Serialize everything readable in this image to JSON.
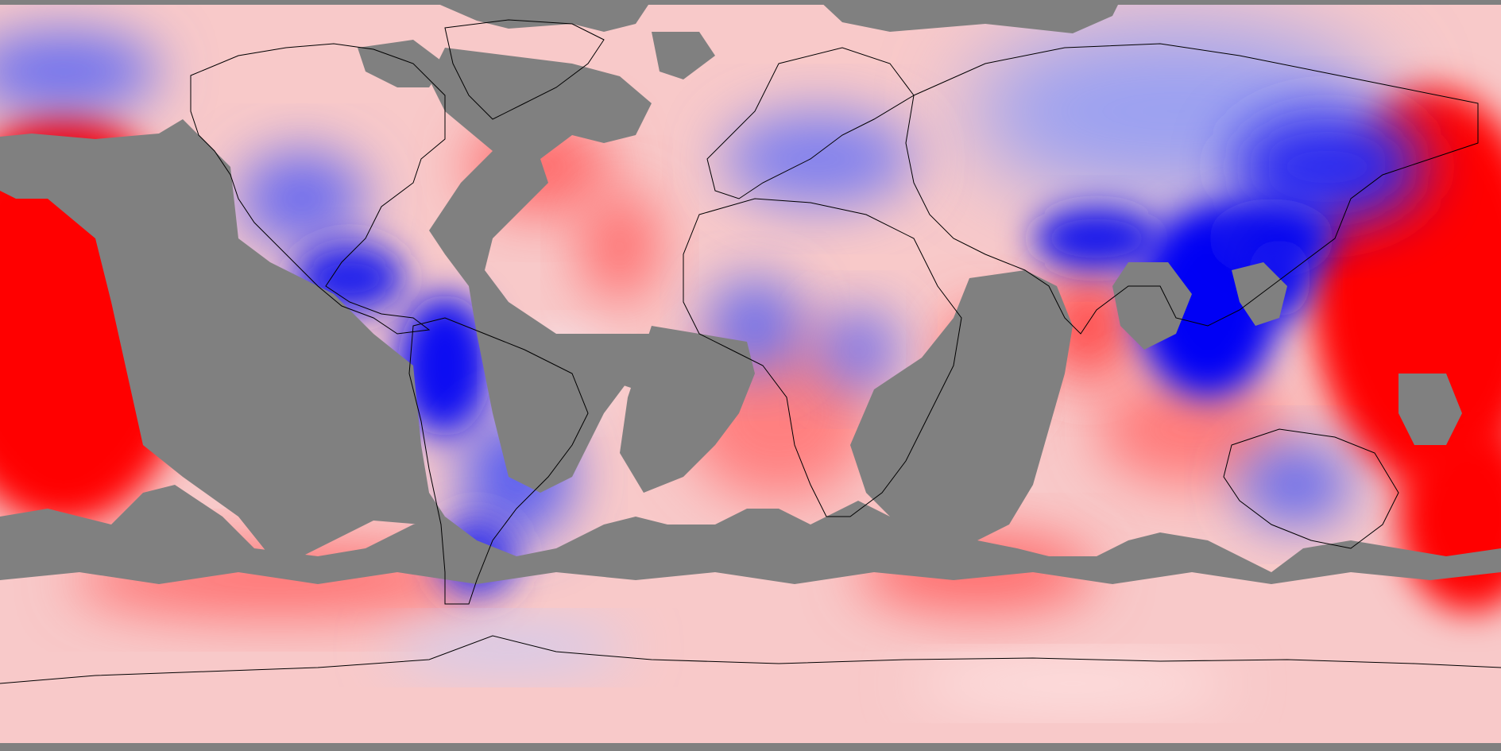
{
  "map": {
    "projection": "equirectangular",
    "colormap": {
      "positive": "#ff0000",
      "neutral": "#ffffff",
      "negative": "#0000ff",
      "missing": "#808080",
      "coastline": "#000000"
    }
  }
}
